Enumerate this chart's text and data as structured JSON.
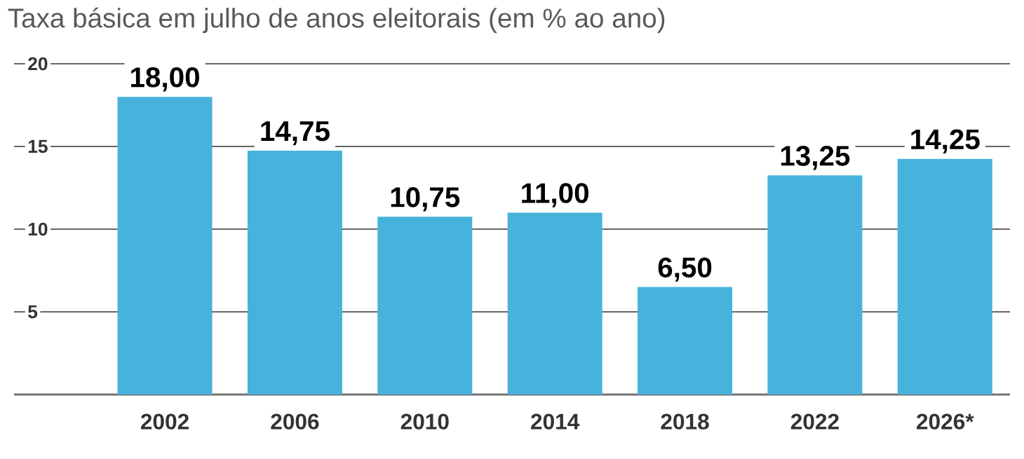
{
  "chart_data": {
    "type": "bar",
    "title": "Taxa básica em julho de anos eleitorais (em % ao ano)",
    "categories": [
      "2002",
      "2006",
      "2010",
      "2014",
      "2018",
      "2022",
      "2026*"
    ],
    "values": [
      18.0,
      14.75,
      10.75,
      11.0,
      6.5,
      13.25,
      14.25
    ],
    "value_labels": [
      "18,00",
      "14,75",
      "10,75",
      "11,00",
      "6,50",
      "13,25",
      "14,25"
    ],
    "color": "#47b3dc",
    "ylim": [
      0,
      20
    ],
    "yticks": [
      5,
      10,
      15,
      20
    ],
    "grid": "y"
  }
}
